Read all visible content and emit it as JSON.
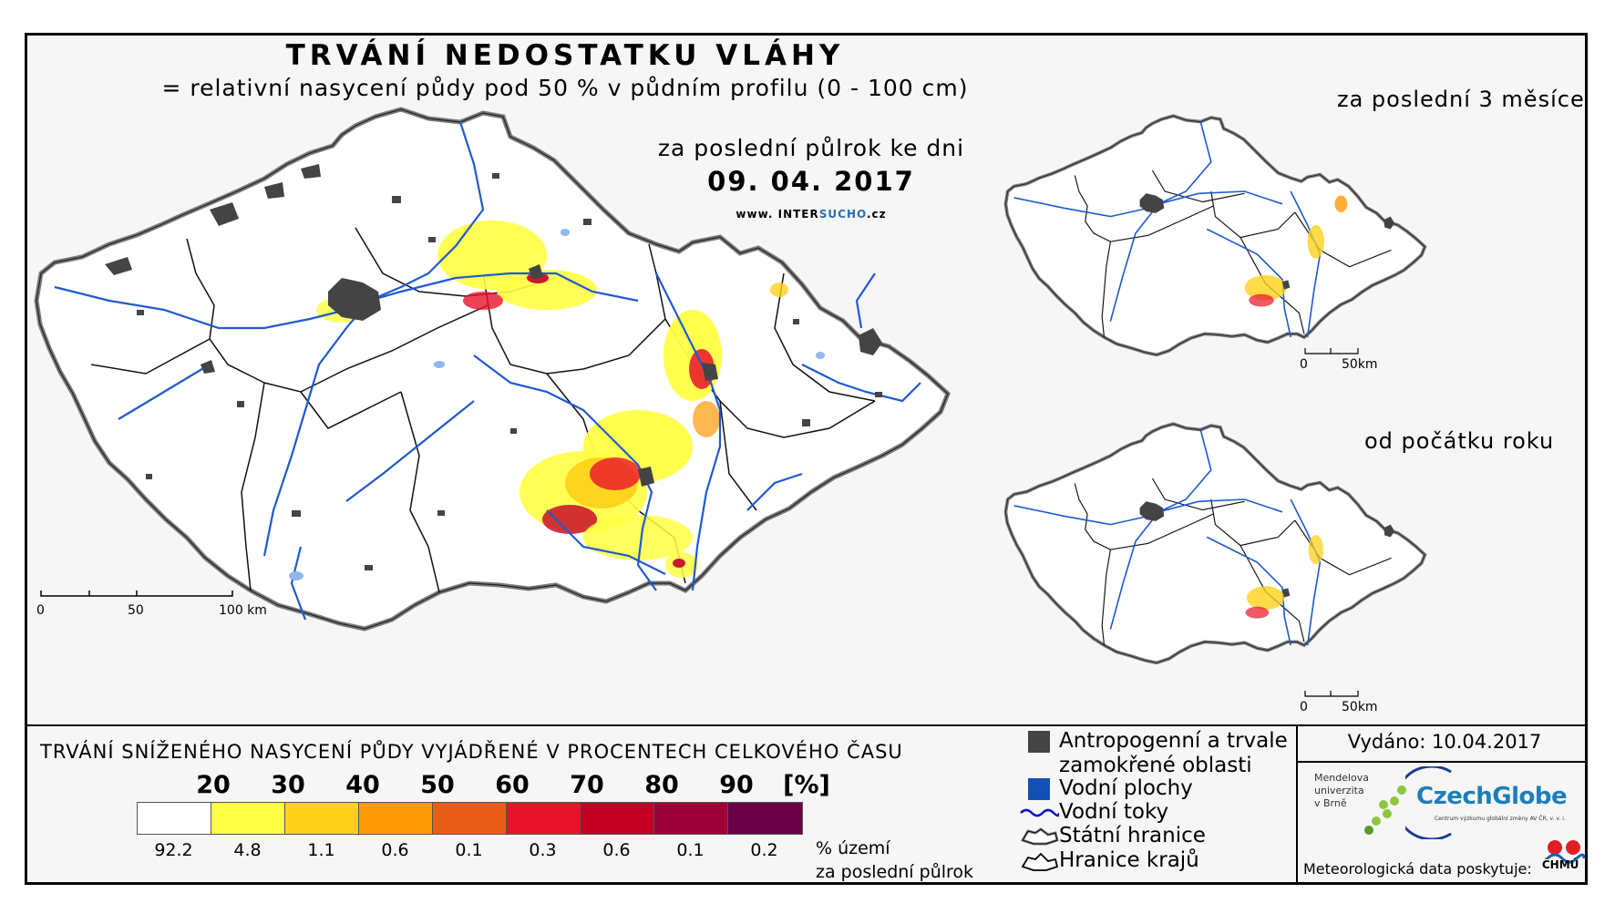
{
  "title": "TRVÁNÍ NEDOSTATKU VLÁHY",
  "subtitle": "= relativní nasycení půdy pod 50 % v půdním profilu (0 - 100 cm)",
  "period_label": "za poslední půlrok ke dni",
  "date": "09. 04. 2017",
  "website": {
    "prefix": "www. INTER",
    "highlight": "SUCHO",
    "suffix": ".cz"
  },
  "main_scale": {
    "labels": [
      "0",
      "50",
      "100 km"
    ]
  },
  "insets": [
    {
      "label": "za poslední 3 měsíce",
      "scale_labels": [
        "0",
        "50km"
      ]
    },
    {
      "label": "od počátku roku",
      "scale_labels": [
        "0",
        "50km"
      ]
    }
  ],
  "legend": {
    "title": "TRVÁNÍ SNÍŽENÉHO NASYCENÍ PŮDY VYJÁDŘENÉ V PROCENTECH CELKOVÉHO ČASU",
    "thresholds": [
      "20",
      "30",
      "40",
      "50",
      "60",
      "70",
      "80",
      "90"
    ],
    "unit": "[%]",
    "colors": [
      "#ffffff",
      "#ffff44",
      "#ffd21c",
      "#ff9a05",
      "#e85c1a",
      "#e8132b",
      "#c40026",
      "#9c0037",
      "#6b0049"
    ],
    "percentages": [
      "92.2",
      "4.8",
      "1.1",
      "0.6",
      "0.1",
      "0.3",
      "0.6",
      "0.1",
      "0.2"
    ],
    "pct_unit_line1": "% území",
    "pct_unit_line2": "za poslední půlrok"
  },
  "symbols": [
    {
      "icon": "anthropogenic-area-icon",
      "label_line1": "Antropogenní a trvale",
      "label_line2": "zamokřené oblasti",
      "color": "#444444"
    },
    {
      "icon": "water-body-icon",
      "label_line1": "Vodní plochy",
      "label_line2": "",
      "color": "#1450b4"
    },
    {
      "icon": "river-icon",
      "label_line1": "Vodní toky",
      "label_line2": "",
      "color": "#0a14c8"
    },
    {
      "icon": "state-border-icon",
      "label_line1": "Státní hranice",
      "label_line2": "",
      "color": "#555555"
    },
    {
      "icon": "region-border-icon",
      "label_line1": "Hranice krajů",
      "label_line2": "",
      "color": "#000000"
    }
  ],
  "issued": "Vydáno: 10.04.2017",
  "logos": {
    "mendel_lines": [
      "Mendelova",
      "univerzita",
      "v Brně"
    ],
    "czechglobe": "CzechGlobe",
    "czechglobe_sub": "Centrum výzkumu globální změny AV ČR, v. v. i.",
    "chmu": "ČHMÚ"
  },
  "meteo_prefix": "Meteorologická data poskytuje:"
}
